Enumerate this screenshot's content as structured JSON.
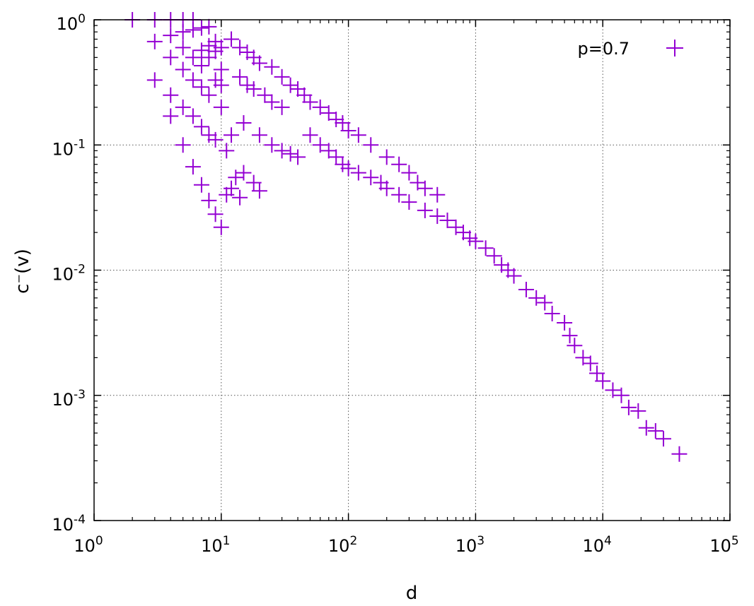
{
  "chart_data": {
    "type": "scatter",
    "title": "",
    "xlabel": "d",
    "ylabel": "c⁻(v)",
    "xscale": "log",
    "yscale": "log",
    "xlim": [
      1,
      100000
    ],
    "ylim": [
      0.0001,
      1
    ],
    "grid": true,
    "legend_position": "top-right",
    "x_ticks": [
      {
        "value": 1,
        "base": "10",
        "exp": "0"
      },
      {
        "value": 10,
        "base": "10",
        "exp": "1"
      },
      {
        "value": 100,
        "base": "10",
        "exp": "2"
      },
      {
        "value": 1000,
        "base": "10",
        "exp": "3"
      },
      {
        "value": 10000,
        "base": "10",
        "exp": "4"
      },
      {
        "value": 100000,
        "base": "10",
        "exp": "5"
      }
    ],
    "y_ticks": [
      {
        "value": 1,
        "base": "10",
        "exp": "0"
      },
      {
        "value": 0.1,
        "base": "10",
        "exp": "-1"
      },
      {
        "value": 0.01,
        "base": "10",
        "exp": "-2"
      },
      {
        "value": 0.001,
        "base": "10",
        "exp": "-3"
      },
      {
        "value": 0.0001,
        "base": "10",
        "exp": "-4"
      }
    ],
    "series": [
      {
        "name": "p=0.7",
        "color": "#9400d3",
        "marker": "plus",
        "points": [
          [
            2,
            1.0
          ],
          [
            3,
            1.0
          ],
          [
            4,
            1.0
          ],
          [
            5,
            1.0
          ],
          [
            6,
            1.0
          ],
          [
            3,
            0.67
          ],
          [
            4,
            0.75
          ],
          [
            5,
            0.8
          ],
          [
            6,
            0.83
          ],
          [
            7,
            0.86
          ],
          [
            8,
            0.88
          ],
          [
            3,
            0.33
          ],
          [
            4,
            0.5
          ],
          [
            5,
            0.6
          ],
          [
            6,
            0.5
          ],
          [
            7,
            0.57
          ],
          [
            8,
            0.62
          ],
          [
            9,
            0.67
          ],
          [
            4,
            0.25
          ],
          [
            5,
            0.4
          ],
          [
            6,
            0.33
          ],
          [
            7,
            0.43
          ],
          [
            8,
            0.5
          ],
          [
            9,
            0.56
          ],
          [
            10,
            0.6
          ],
          [
            4,
            0.17
          ],
          [
            5,
            0.2
          ],
          [
            6,
            0.17
          ],
          [
            7,
            0.29
          ],
          [
            8,
            0.25
          ],
          [
            9,
            0.33
          ],
          [
            10,
            0.4
          ],
          [
            5,
            0.1
          ],
          [
            6,
            0.067
          ],
          [
            7,
            0.14
          ],
          [
            7,
            0.048
          ],
          [
            8,
            0.12
          ],
          [
            8,
            0.036
          ],
          [
            9,
            0.11
          ],
          [
            9,
            0.028
          ],
          [
            10,
            0.022
          ],
          [
            10,
            0.2
          ],
          [
            10,
            0.3
          ],
          [
            11,
            0.04
          ],
          [
            12,
            0.045
          ],
          [
            14,
            0.038
          ],
          [
            13,
            0.055
          ],
          [
            15,
            0.06
          ],
          [
            11,
            0.09
          ],
          [
            12,
            0.12
          ],
          [
            18,
            0.05
          ],
          [
            20,
            0.043
          ],
          [
            12,
            0.7
          ],
          [
            14,
            0.6
          ],
          [
            16,
            0.55
          ],
          [
            18,
            0.5
          ],
          [
            20,
            0.45
          ],
          [
            25,
            0.42
          ],
          [
            14,
            0.35
          ],
          [
            16,
            0.3
          ],
          [
            18,
            0.28
          ],
          [
            22,
            0.25
          ],
          [
            25,
            0.22
          ],
          [
            30,
            0.2
          ],
          [
            15,
            0.15
          ],
          [
            20,
            0.12
          ],
          [
            25,
            0.1
          ],
          [
            30,
            0.09
          ],
          [
            35,
            0.085
          ],
          [
            40,
            0.08
          ],
          [
            30,
            0.35
          ],
          [
            35,
            0.3
          ],
          [
            40,
            0.28
          ],
          [
            45,
            0.25
          ],
          [
            50,
            0.22
          ],
          [
            60,
            0.2
          ],
          [
            50,
            0.12
          ],
          [
            60,
            0.1
          ],
          [
            70,
            0.09
          ],
          [
            80,
            0.08
          ],
          [
            90,
            0.07
          ],
          [
            100,
            0.065
          ],
          [
            70,
            0.18
          ],
          [
            80,
            0.16
          ],
          [
            90,
            0.15
          ],
          [
            100,
            0.13
          ],
          [
            120,
            0.12
          ],
          [
            150,
            0.1
          ],
          [
            120,
            0.06
          ],
          [
            150,
            0.055
          ],
          [
            180,
            0.05
          ],
          [
            200,
            0.045
          ],
          [
            250,
            0.04
          ],
          [
            300,
            0.035
          ],
          [
            200,
            0.08
          ],
          [
            250,
            0.07
          ],
          [
            300,
            0.06
          ],
          [
            350,
            0.05
          ],
          [
            400,
            0.045
          ],
          [
            500,
            0.04
          ],
          [
            400,
            0.03
          ],
          [
            500,
            0.027
          ],
          [
            600,
            0.025
          ],
          [
            700,
            0.022
          ],
          [
            800,
            0.02
          ],
          [
            900,
            0.018
          ],
          [
            1000,
            0.017
          ],
          [
            1200,
            0.015
          ],
          [
            1400,
            0.013
          ],
          [
            1600,
            0.011
          ],
          [
            1800,
            0.01
          ],
          [
            2000,
            0.009
          ],
          [
            2500,
            0.007
          ],
          [
            3000,
            0.006
          ],
          [
            3500,
            0.0055
          ],
          [
            4000,
            0.0045
          ],
          [
            5000,
            0.0038
          ],
          [
            5500,
            0.003
          ],
          [
            6000,
            0.0025
          ],
          [
            7000,
            0.002
          ],
          [
            8000,
            0.0018
          ],
          [
            9000,
            0.0015
          ],
          [
            10000,
            0.0013
          ],
          [
            12000,
            0.0011
          ],
          [
            14000,
            0.001
          ],
          [
            16000,
            0.0008
          ],
          [
            19000,
            0.00075
          ],
          [
            22000,
            0.00055
          ],
          [
            26000,
            0.00052
          ],
          [
            30000,
            0.00045
          ],
          [
            40000,
            0.00034
          ]
        ]
      }
    ]
  }
}
